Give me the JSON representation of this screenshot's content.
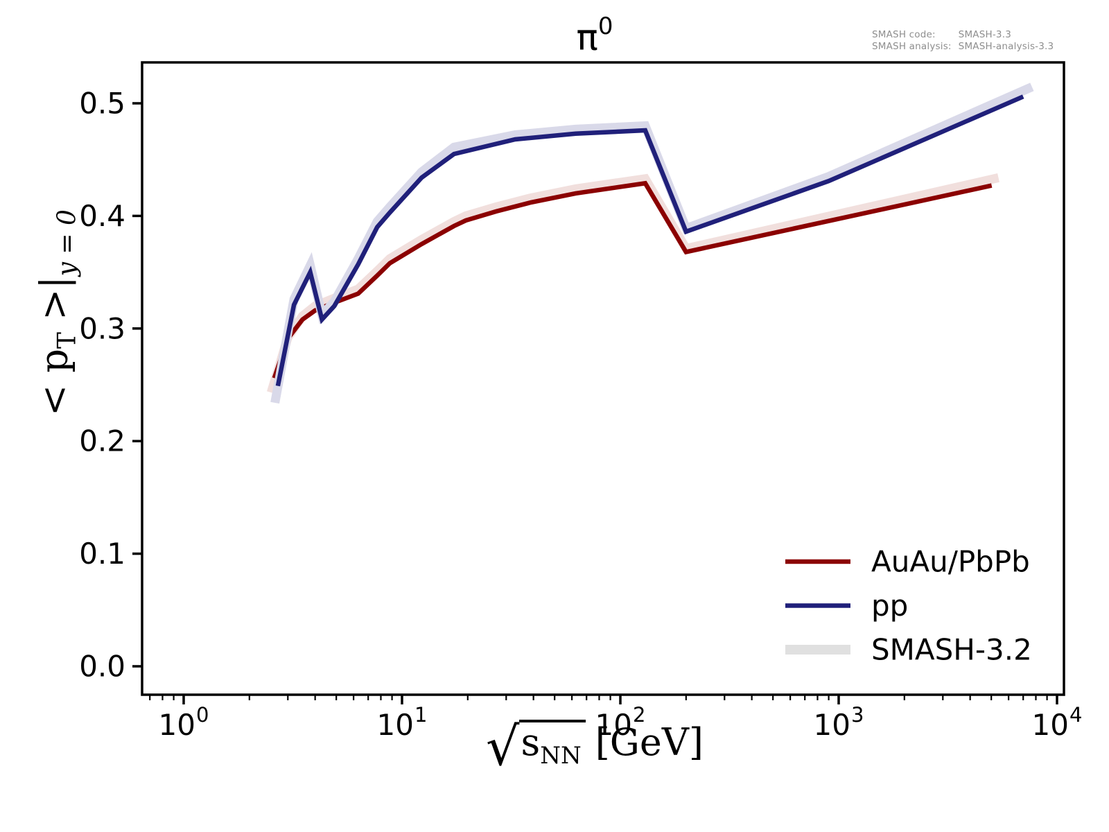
{
  "title": {
    "base": "π",
    "exp": "0"
  },
  "watermark": {
    "line1_label": "SMASH code:",
    "line1_value": "SMASH-3.3",
    "line2_label": "SMASH analysis:",
    "line2_value": "SMASH-analysis-3.3"
  },
  "axes": {
    "xlabel": {
      "radical": "√",
      "symbol": "s",
      "subscript": "NN",
      "unit": "[GeV]"
    },
    "ylabel": {
      "pre": "< p",
      "sub1": "T",
      "mid": " >|",
      "sub2": "y = 0"
    }
  },
  "chart_data": {
    "type": "line",
    "title": "π0",
    "xlabel": "sqrt(s_NN) [GeV]",
    "ylabel": "<pT>|_{y=0}",
    "x_scale": "log",
    "xlim": [
      0.64,
      10800
    ],
    "ylim": [
      -0.025,
      0.536
    ],
    "grid": false,
    "x_ticks": [
      {
        "value": 1,
        "base": "10",
        "exp": "0"
      },
      {
        "value": 10,
        "base": "10",
        "exp": "1"
      },
      {
        "value": 100,
        "base": "10",
        "exp": "2"
      },
      {
        "value": 1000,
        "base": "10",
        "exp": "3"
      },
      {
        "value": 10000,
        "base": "10",
        "exp": "4"
      }
    ],
    "y_ticks": [
      {
        "value": 0.0,
        "label": "0.0"
      },
      {
        "value": 0.1,
        "label": "0.1"
      },
      {
        "value": 0.2,
        "label": "0.2"
      },
      {
        "value": 0.3,
        "label": "0.3"
      },
      {
        "value": 0.4,
        "label": "0.4"
      },
      {
        "value": 0.5,
        "label": "0.5"
      }
    ],
    "series": [
      {
        "name": "SMASH-3.2 AuAu/PbPb band",
        "role": "band",
        "color": "#f1dfdd",
        "width": 13,
        "x": [
          2.55,
          3.0,
          3.5,
          4.0,
          4.9,
          6.3,
          7.7,
          8.8,
          12.3,
          17.3,
          19.6,
          27,
          39,
          62.4,
          130,
          200,
          5150
        ],
        "y": [
          0.247,
          0.292,
          0.311,
          0.32,
          0.327,
          0.335,
          0.351,
          0.362,
          0.379,
          0.395,
          0.4,
          0.408,
          0.416,
          0.424,
          0.433,
          0.371,
          0.433
        ]
      },
      {
        "name": "AuAu/PbPb",
        "role": "line",
        "color": "#8b0000",
        "width": 6.5,
        "x": [
          2.6,
          3.0,
          3.5,
          4.0,
          4.9,
          6.3,
          7.7,
          8.8,
          12.3,
          17.3,
          19.6,
          27,
          39,
          62.4,
          130,
          200,
          5020
        ],
        "y": [
          0.256,
          0.291,
          0.308,
          0.316,
          0.323,
          0.331,
          0.347,
          0.358,
          0.375,
          0.391,
          0.396,
          0.404,
          0.412,
          0.42,
          0.429,
          0.368,
          0.427
        ]
      },
      {
        "name": "SMASH-3.2 pp band",
        "role": "band",
        "color": "#d9d9e9",
        "width": 13,
        "x": [
          2.64,
          3.2,
          3.8,
          4.3,
          4.9,
          6.3,
          7.7,
          8.8,
          12.3,
          17.3,
          33,
          62.4,
          130,
          200,
          900,
          7350
        ],
        "y": [
          0.238,
          0.326,
          0.356,
          0.312,
          0.324,
          0.362,
          0.395,
          0.408,
          0.439,
          0.461,
          0.472,
          0.477,
          0.48,
          0.389,
          0.435,
          0.513
        ]
      },
      {
        "name": "pp",
        "role": "line",
        "color": "#20207a",
        "width": 6.5,
        "x": [
          2.7,
          3.2,
          3.8,
          4.3,
          4.9,
          6.3,
          7.7,
          8.8,
          12.3,
          17.3,
          33,
          62.4,
          130,
          200,
          900,
          7000
        ],
        "y": [
          0.249,
          0.321,
          0.35,
          0.308,
          0.32,
          0.357,
          0.39,
          0.403,
          0.434,
          0.455,
          0.468,
          0.473,
          0.476,
          0.386,
          0.431,
          0.506
        ]
      }
    ],
    "legend": {
      "position": "lower right",
      "entries": [
        {
          "label": "AuAu/PbPb",
          "color": "#8b0000",
          "line_width": 6.5
        },
        {
          "label": "pp",
          "color": "#20207a",
          "line_width": 6.5
        },
        {
          "label": "SMASH-3.2",
          "color": "#e0e0e0",
          "line_width": 14
        }
      ]
    }
  }
}
